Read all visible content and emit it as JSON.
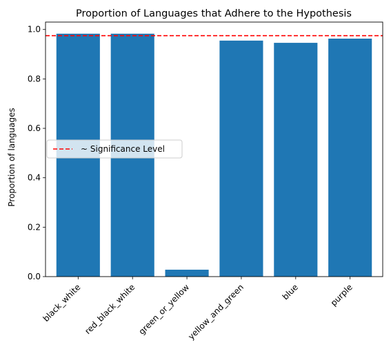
{
  "chart_data": {
    "type": "bar",
    "title": "Proportion of Languages that Adhere to the Hypothesis",
    "xlabel": "",
    "ylabel": "Proportion of languages",
    "categories": [
      "black_white",
      "red_black_white",
      "green_or_yellow",
      "yellow_and_green",
      "blue",
      "purple"
    ],
    "values": [
      0.983,
      0.983,
      0.028,
      0.955,
      0.946,
      0.963
    ],
    "ylim": [
      0,
      1.03
    ],
    "yticks": [
      0.0,
      0.2,
      0.4,
      0.6,
      0.8,
      1.0
    ],
    "ytick_labels": [
      "0.0",
      "0.2",
      "0.4",
      "0.6",
      "0.8",
      "1.0"
    ],
    "bar_color": "#1f77b4",
    "reference_line": {
      "value": 0.975,
      "label": "~ Significance Level",
      "color": "#ff0000",
      "style": "dashed"
    },
    "legend_placement": "center-left",
    "grid": false
  }
}
